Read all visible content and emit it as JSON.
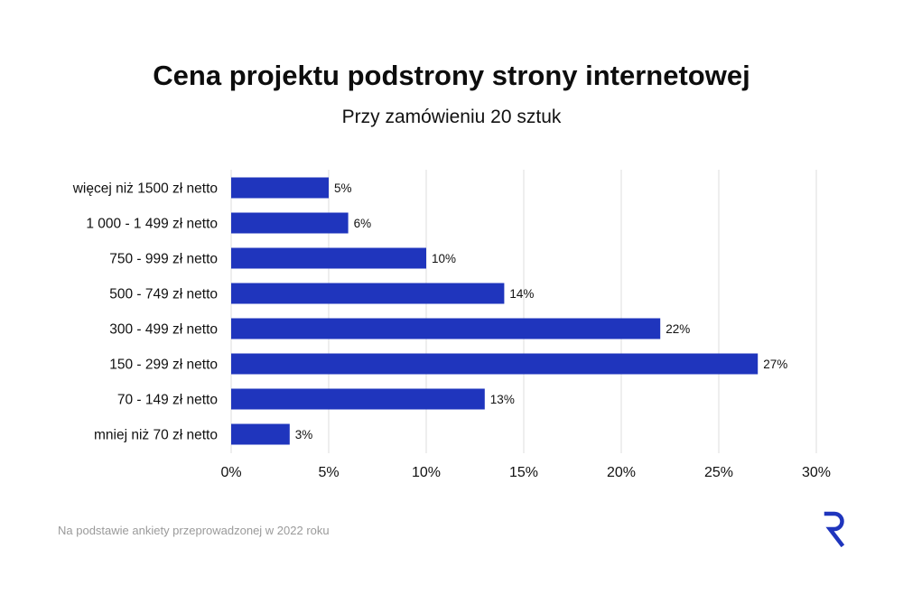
{
  "header": {
    "title": "Cena projektu podstrony strony internetowej",
    "subtitle": "Przy zamówieniu 20 sztuk"
  },
  "footer": {
    "note": "Na podstawie ankiety przeprowadzonej w 2022 roku",
    "logo_icon": "r-logo-icon"
  },
  "colors": {
    "bar": "#1f35bd",
    "grid": "#dddddd",
    "logo": "#1f35bd"
  },
  "chart_data": {
    "type": "bar",
    "orientation": "horizontal",
    "categories": [
      "więcej niż 1500 zł netto",
      "1 000 - 1 499 zł netto",
      "750 - 999 zł netto",
      "500 - 749 zł netto",
      "300 - 499 zł netto",
      "150 - 299 zł netto",
      "70 - 149 zł netto",
      "mniej niż 70 zł netto"
    ],
    "values": [
      5,
      6,
      10,
      14,
      22,
      27,
      13,
      3
    ],
    "value_labels": [
      "5%",
      "6%",
      "10%",
      "14%",
      "22%",
      "27%",
      "13%",
      "3%"
    ],
    "xlim": [
      0,
      30
    ],
    "x_ticks": [
      0,
      5,
      10,
      15,
      20,
      25,
      30
    ],
    "x_tick_labels": [
      "0%",
      "5%",
      "10%",
      "15%",
      "20%",
      "25%",
      "30%"
    ],
    "grid": "vertical",
    "legend": "none"
  }
}
